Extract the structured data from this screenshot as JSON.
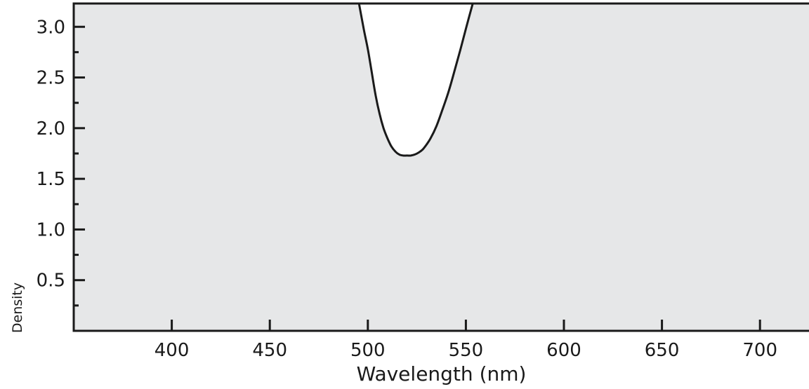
{
  "chart_data": {
    "type": "line",
    "title": "",
    "xlabel": "Wavelength (nm)",
    "ylabel": "Density",
    "xlim": [
      350,
      725
    ],
    "ylim": [
      0,
      3.23
    ],
    "x_ticks": [
      400,
      450,
      500,
      550,
      600,
      650,
      700
    ],
    "x_tick_labels": [
      "400",
      "450",
      "500",
      "550",
      "600",
      "650",
      "700"
    ],
    "y_ticks": [
      0.5,
      1.0,
      1.5,
      2.0,
      2.5,
      3.0
    ],
    "y_tick_labels": [
      "0.5",
      "1.0",
      "1.5",
      "2.0",
      "2.5",
      "3.0"
    ],
    "y_minor_ticks": [
      0.25,
      0.75,
      1.25,
      1.75,
      2.25,
      2.75
    ],
    "grid": false,
    "series": [
      {
        "x": [
          495.5,
          498,
          500,
          502,
          504,
          506,
          508,
          510,
          512,
          514,
          516,
          518,
          520,
          522,
          524,
          526,
          528,
          530,
          532,
          535,
          538,
          541,
          544,
          547,
          550,
          553.5
        ],
        "y": [
          3.23,
          2.97,
          2.78,
          2.55,
          2.32,
          2.14,
          2.0,
          1.9,
          1.82,
          1.77,
          1.74,
          1.73,
          1.73,
          1.73,
          1.74,
          1.76,
          1.79,
          1.84,
          1.9,
          2.02,
          2.18,
          2.35,
          2.55,
          2.76,
          2.98,
          3.23
        ]
      }
    ],
    "colors": {
      "plot_background": "#e6e7e8",
      "curve_fill": "#ffffff",
      "line": "#1a1a1a"
    }
  }
}
